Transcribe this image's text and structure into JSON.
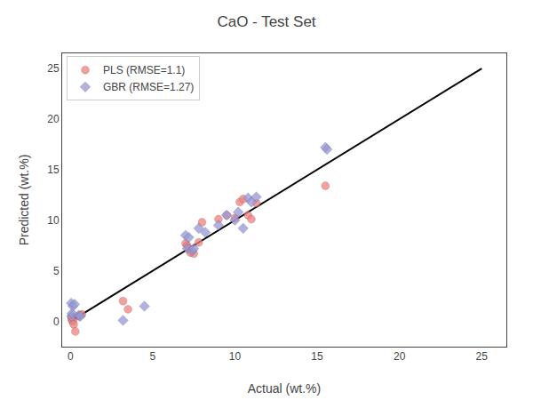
{
  "chart_data": {
    "type": "scatter",
    "title": "CaO - Test Set",
    "xlabel": "Actual (wt.%)",
    "ylabel": "Predicted (wt.%)",
    "xlim": [
      -0.5,
      26.5
    ],
    "ylim": [
      -2.5,
      26.5
    ],
    "xticks": [
      0,
      5,
      10,
      15,
      20,
      25
    ],
    "yticks": [
      0,
      5,
      10,
      15,
      20,
      25
    ],
    "grid": false,
    "legend": "upper left",
    "series": [
      {
        "type": "line",
        "color": "black",
        "line_style": "solid",
        "x": [
          0,
          25
        ],
        "values": [
          0,
          25
        ]
      },
      {
        "name": "PLS (RMSE=1.1)",
        "type": "scatter",
        "color": "#F28080",
        "marker": "circle",
        "x": [
          0.05,
          0.08,
          0.1,
          0.15,
          0.2,
          0.3,
          0.5,
          0.6,
          0.7,
          3.2,
          3.5,
          7.0,
          7.1,
          7.2,
          7.3,
          7.5,
          7.8,
          8.0,
          9.0,
          9.5,
          10.0,
          10.3,
          10.5,
          10.8,
          11.0,
          11.3,
          15.5
        ],
        "values": [
          0.5,
          0.3,
          0.1,
          0.0,
          -0.3,
          -1.0,
          0.5,
          0.6,
          0.7,
          2.0,
          1.2,
          7.7,
          7.5,
          7.2,
          6.8,
          6.7,
          7.8,
          9.8,
          10.1,
          10.5,
          10.2,
          11.8,
          12.1,
          10.5,
          10.1,
          11.7,
          13.4
        ]
      },
      {
        "name": "GBR (RMSE=1.27)",
        "type": "scatter",
        "color": "#9898D8",
        "marker": "diamond",
        "x": [
          0.05,
          0.08,
          0.1,
          0.15,
          0.25,
          0.5,
          0.6,
          3.2,
          4.5,
          7.0,
          7.1,
          7.2,
          7.4,
          7.5,
          7.8,
          8.2,
          9.0,
          9.5,
          10.0,
          10.2,
          10.5,
          10.8,
          11.0,
          11.3,
          15.5,
          15.6
        ],
        "values": [
          1.8,
          0.5,
          0.8,
          1.5,
          1.7,
          0.6,
          0.5,
          0.1,
          1.5,
          8.5,
          7.2,
          8.3,
          7.0,
          7.2,
          9.2,
          8.8,
          9.5,
          10.5,
          10.0,
          10.8,
          9.2,
          12.2,
          11.8,
          12.3,
          17.2,
          17.0
        ]
      }
    ]
  }
}
